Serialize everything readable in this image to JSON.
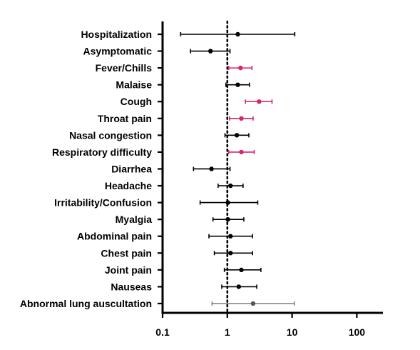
{
  "chart_data": {
    "type": "forest",
    "x_scale": "log",
    "xlim": [
      0.1,
      300
    ],
    "x_ticks": [
      0.1,
      1,
      10,
      100
    ],
    "x_tick_labels": [
      "0.1",
      "1",
      "10",
      "100"
    ],
    "reference_line": 1,
    "grid": false,
    "colors": {
      "default": "#000000",
      "highlight": "#d6246e",
      "light": "#555555"
    },
    "rows": [
      {
        "label": "Hospitalization",
        "estimate": 1.45,
        "low": 0.19,
        "high": 11.0,
        "color": "default"
      },
      {
        "label": "Asymptomatic",
        "estimate": 0.55,
        "low": 0.27,
        "high": 1.1,
        "color": "default"
      },
      {
        "label": "Fever/Chills",
        "estimate": 1.6,
        "low": 1.05,
        "high": 2.4,
        "color": "highlight"
      },
      {
        "label": "Malaise",
        "estimate": 1.45,
        "low": 0.95,
        "high": 2.2,
        "color": "default"
      },
      {
        "label": "Cough",
        "estimate": 3.1,
        "low": 1.9,
        "high": 4.9,
        "color": "highlight"
      },
      {
        "label": "Throat pain",
        "estimate": 1.65,
        "low": 1.08,
        "high": 2.5,
        "color": "highlight"
      },
      {
        "label": "Nasal congestion",
        "estimate": 1.4,
        "low": 0.92,
        "high": 2.15,
        "color": "default"
      },
      {
        "label": "Respiratory difficulty",
        "estimate": 1.65,
        "low": 1.05,
        "high": 2.6,
        "color": "highlight"
      },
      {
        "label": "Diarrhea",
        "estimate": 0.57,
        "low": 0.3,
        "high": 1.1,
        "color": "default"
      },
      {
        "label": "Headache",
        "estimate": 1.12,
        "low": 0.72,
        "high": 1.75,
        "color": "default"
      },
      {
        "label": "Irritability/Confusion",
        "estimate": 1.02,
        "low": 0.38,
        "high": 2.95,
        "color": "default"
      },
      {
        "label": "Myalgia",
        "estimate": 1.02,
        "low": 0.6,
        "high": 1.8,
        "color": "default"
      },
      {
        "label": "Abdominal pain",
        "estimate": 1.12,
        "low": 0.52,
        "high": 2.45,
        "color": "default"
      },
      {
        "label": "Chest pain",
        "estimate": 1.12,
        "low": 0.63,
        "high": 2.45,
        "color": "default"
      },
      {
        "label": "Joint pain",
        "estimate": 1.65,
        "low": 0.9,
        "high": 3.3,
        "color": "default"
      },
      {
        "label": "Nauseas",
        "estimate": 1.5,
        "low": 0.82,
        "high": 2.85,
        "color": "default"
      },
      {
        "label": "Abnormal lung auscultation",
        "estimate": 2.5,
        "low": 0.58,
        "high": 10.8,
        "color": "light"
      }
    ]
  }
}
